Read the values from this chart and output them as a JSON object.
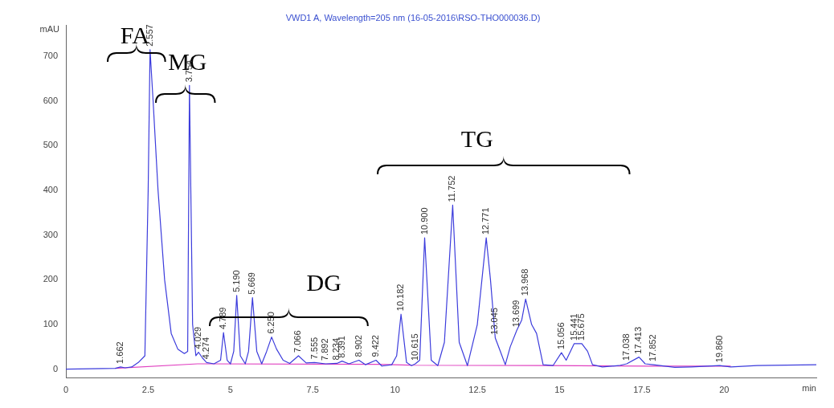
{
  "chart_data": {
    "type": "line",
    "title": "VWD1 A, Wavelength=205 nm (16-05-2016\\RSO-THO000036.D)",
    "xlabel": "min",
    "ylabel": "mAU",
    "xlim": [
      0,
      22.8
    ],
    "ylim": [
      -20,
      770
    ],
    "xticks": [
      0,
      2.5,
      5,
      7.5,
      10,
      12.5,
      15,
      17.5,
      20
    ],
    "yticks": [
      0,
      100,
      200,
      300,
      400,
      500,
      600,
      700
    ],
    "grid": false,
    "legend": false,
    "marker": "none",
    "line_style": "solid",
    "series": [
      {
        "color": "#3c3cdc",
        "x": [
          0,
          1.5,
          1.662,
          1.8,
          2.0,
          2.2,
          2.4,
          2.5,
          2.557,
          2.65,
          2.8,
          3.0,
          3.2,
          3.4,
          3.6,
          3.7,
          3.754,
          3.85,
          3.95,
          4.029,
          4.15,
          4.274,
          4.5,
          4.7,
          4.789,
          4.9,
          5.0,
          5.1,
          5.19,
          5.3,
          5.45,
          5.55,
          5.669,
          5.8,
          5.95,
          6.1,
          6.25,
          6.4,
          6.6,
          6.8,
          7.066,
          7.3,
          7.555,
          7.892,
          8.234,
          8.391,
          8.6,
          8.902,
          9.1,
          9.422,
          9.6,
          9.9,
          10.05,
          10.182,
          10.35,
          10.5,
          10.615,
          10.75,
          10.9,
          11.1,
          11.3,
          11.5,
          11.752,
          11.95,
          12.2,
          12.5,
          12.771,
          12.9,
          13.045,
          13.2,
          13.35,
          13.5,
          13.699,
          13.85,
          13.968,
          14.15,
          14.3,
          14.5,
          14.8,
          15.056,
          15.2,
          15.441,
          15.675,
          15.85,
          16.0,
          16.3,
          16.8,
          17.038,
          17.413,
          17.6,
          17.852,
          18.5,
          19.0,
          19.86,
          20.2,
          21.0,
          22.8
        ],
        "values": [
          0,
          2,
          5,
          3,
          5,
          15,
          30,
          400,
          715,
          600,
          400,
          200,
          80,
          45,
          35,
          40,
          635,
          100,
          30,
          38,
          25,
          15,
          12,
          20,
          82,
          20,
          12,
          40,
          165,
          30,
          12,
          40,
          160,
          40,
          12,
          40,
          72,
          45,
          20,
          13,
          30,
          14,
          15,
          12,
          13,
          18,
          12,
          20,
          10,
          20,
          7,
          10,
          30,
          123,
          15,
          8,
          12,
          20,
          294,
          20,
          8,
          60,
          367,
          60,
          8,
          100,
          294,
          200,
          70,
          40,
          10,
          50,
          87,
          110,
          157,
          100,
          80,
          10,
          8,
          37,
          20,
          57,
          57,
          40,
          10,
          5,
          8,
          12,
          27,
          12,
          10,
          4,
          5,
          8,
          5,
          8,
          10
        ]
      },
      {
        "color": "#e040c0",
        "x": [
          1.5,
          4.0,
          9.5,
          10.5,
          14.5,
          17.8,
          20.2
        ],
        "values": [
          2,
          12,
          11,
          9,
          8,
          7,
          7
        ]
      }
    ],
    "annotations": [
      "FA",
      "MG",
      "DG",
      "TG",
      {
        "text": "1.662",
        "x": 1.662,
        "y": 5
      },
      {
        "text": "2.557",
        "x": 2.557,
        "y": 715
      },
      {
        "text": "3.754",
        "x": 3.754,
        "y": 635
      },
      {
        "text": "4.029",
        "x": 4.029,
        "y": 38
      },
      {
        "text": "4.274",
        "x": 4.274,
        "y": 15
      },
      {
        "text": "4.789",
        "x": 4.789,
        "y": 82
      },
      {
        "text": "5.190",
        "x": 5.19,
        "y": 165
      },
      {
        "text": "5.669",
        "x": 5.669,
        "y": 160
      },
      {
        "text": "6.250",
        "x": 6.25,
        "y": 72
      },
      {
        "text": "7.066",
        "x": 7.066,
        "y": 30
      },
      {
        "text": "7.555",
        "x": 7.555,
        "y": 15
      },
      {
        "text": "7.892",
        "x": 7.892,
        "y": 12
      },
      {
        "text": "8.234",
        "x": 8.234,
        "y": 13
      },
      {
        "text": "8.391",
        "x": 8.391,
        "y": 18
      },
      {
        "text": "8.902",
        "x": 8.902,
        "y": 20
      },
      {
        "text": "9.422",
        "x": 9.422,
        "y": 20
      },
      {
        "text": "10.182",
        "x": 10.182,
        "y": 123
      },
      {
        "text": "10.615",
        "x": 10.615,
        "y": 12
      },
      {
        "text": "10.900",
        "x": 10.9,
        "y": 294
      },
      {
        "text": "11.752",
        "x": 11.752,
        "y": 367
      },
      {
        "text": "12.771",
        "x": 12.771,
        "y": 294
      },
      {
        "text": "13.045",
        "x": 13.045,
        "y": 70
      },
      {
        "text": "13.699",
        "x": 13.699,
        "y": 87
      },
      {
        "text": "13.968",
        "x": 13.968,
        "y": 157
      },
      {
        "text": "15.056",
        "x": 15.056,
        "y": 37
      },
      {
        "text": "15.441",
        "x": 15.441,
        "y": 57
      },
      {
        "text": "15.675",
        "x": 15.675,
        "y": 57
      },
      {
        "text": "17.038",
        "x": 17.038,
        "y": 12
      },
      {
        "text": "17.413",
        "x": 17.413,
        "y": 27
      },
      {
        "text": "17.852",
        "x": 17.852,
        "y": 10
      },
      {
        "text": "19.860",
        "x": 19.86,
        "y": 8
      }
    ]
  }
}
